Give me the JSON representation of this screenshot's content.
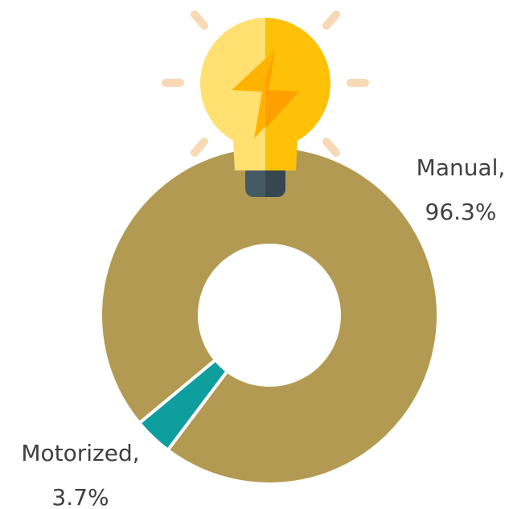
{
  "chart_data": {
    "type": "donut",
    "categories": [
      "Manual,",
      "Motorized,"
    ],
    "values": [
      96.3,
      3.7
    ],
    "value_labels": [
      "96.3%",
      "3.7%"
    ],
    "colors": [
      "#b39a52",
      "#0e9e9e"
    ]
  }
}
